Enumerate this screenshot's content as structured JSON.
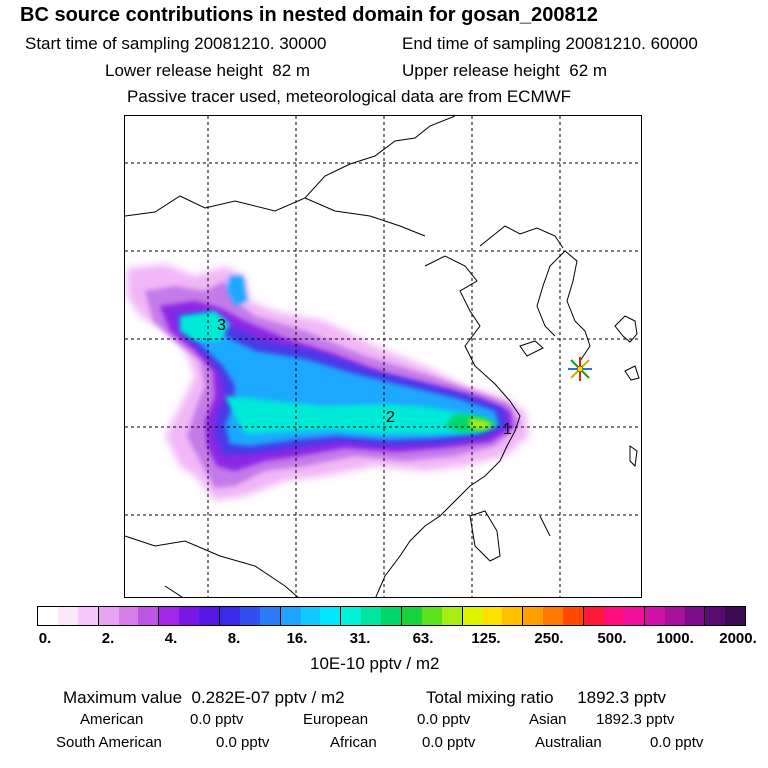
{
  "title": "BC  source contributions in nested domain for gosan_200812",
  "sampling": {
    "start_label": "Start time of sampling",
    "start_value": "20081210. 30000",
    "end_label": "End time of sampling",
    "end_value": "20081210. 60000"
  },
  "release": {
    "lower_label": "Lower release height",
    "lower_value": "82 m",
    "upper_label": "Upper release height",
    "upper_value": "62 m"
  },
  "note": "Passive tracer used, meteorological data are from ECMWF",
  "map": {
    "source_labels": [
      "1",
      "2",
      "3"
    ],
    "receptor_marker": "star-marker"
  },
  "colorbar": {
    "colors": [
      "#ffffff",
      "#fbe6fb",
      "#f3c8f6",
      "#e6a3f2",
      "#d47ee9",
      "#bf55e6",
      "#a426e6",
      "#7a16e6",
      "#5618e6",
      "#3a2ae6",
      "#2f4ff0",
      "#2a7cf8",
      "#1fa5ff",
      "#12c8ff",
      "#00e6ff",
      "#00f2d8",
      "#00e6a0",
      "#00d46a",
      "#18d23c",
      "#5ee01a",
      "#a8ee12",
      "#e0f400",
      "#ffe000",
      "#ffc000",
      "#ffa000",
      "#ff7800",
      "#ff4a00",
      "#ff1a3c",
      "#ff0f7e",
      "#f0109c",
      "#d012a8",
      "#a8109e",
      "#7e0c8c",
      "#5a0a70",
      "#3c0a52"
    ],
    "tick_labels": [
      "0.",
      "2.",
      "4.",
      "8.",
      "16.",
      "31.",
      "63.",
      "125.",
      "250.",
      "500.",
      "1000.",
      "2000."
    ],
    "unit": "10E-10 pptv / m2"
  },
  "summary": {
    "max_label": "Maximum value",
    "max_value": "0.282E-07 pptv / m2",
    "total_label": "Total mixing ratio",
    "total_value": "1892.3 pptv",
    "regions": [
      {
        "name": "American",
        "value": "0.0 pptv"
      },
      {
        "name": "European",
        "value": "0.0 pptv"
      },
      {
        "name": "Asian",
        "value": "1892.3 pptv"
      },
      {
        "name": "South American",
        "value": "0.0 pptv"
      },
      {
        "name": "African",
        "value": "0.0 pptv"
      },
      {
        "name": "Australian",
        "value": "0.0 pptv"
      }
    ]
  }
}
